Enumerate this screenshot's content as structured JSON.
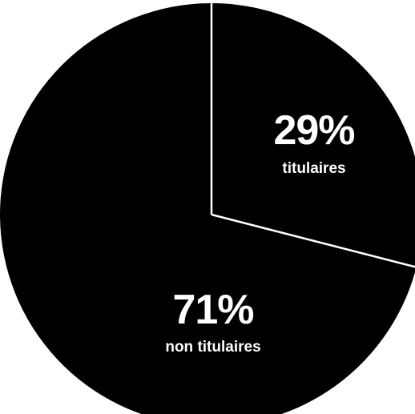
{
  "chart_data": {
    "type": "pie",
    "slices": [
      {
        "label": "titulaires",
        "value": 29,
        "value_text": "29%",
        "color": "#000000"
      },
      {
        "label": "non titulaires",
        "value": 71,
        "value_text": "71%",
        "color": "#000000"
      }
    ],
    "divider_color": "#ffffff",
    "label_color": "#ffffff",
    "start": "top",
    "direction": "clockwise"
  }
}
